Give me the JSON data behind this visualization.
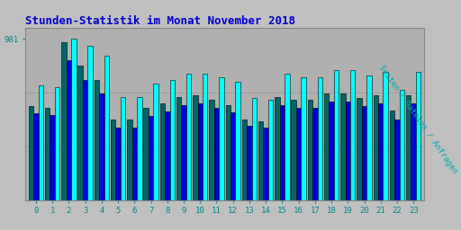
{
  "title": "Stunden-Statistik im Monat November 2018",
  "ylabel": "Seiten / Dateien / Anfragen",
  "xlabel_ticks": [
    0,
    1,
    2,
    3,
    4,
    5,
    6,
    7,
    8,
    9,
    10,
    11,
    12,
    13,
    14,
    15,
    16,
    17,
    18,
    19,
    20,
    21,
    22,
    23
  ],
  "ymax_label": "981",
  "background_color": "#c0c0c0",
  "plot_bg_color": "#b0b0b0",
  "title_color": "#0000cc",
  "ylabel_color": "#00aaaa",
  "tick_color": "#008888",
  "bar_colors": [
    "#006666",
    "#0000dd",
    "#00ffff"
  ],
  "bar_edge_color": "#000000",
  "seiten": [
    570,
    560,
    960,
    820,
    730,
    490,
    490,
    560,
    590,
    630,
    640,
    610,
    580,
    490,
    480,
    630,
    610,
    610,
    650,
    650,
    620,
    640,
    545,
    640
  ],
  "dateien": [
    530,
    520,
    850,
    730,
    650,
    440,
    440,
    510,
    540,
    580,
    590,
    560,
    535,
    450,
    440,
    580,
    560,
    560,
    600,
    600,
    570,
    590,
    490,
    590
  ],
  "anfragen": [
    700,
    690,
    981,
    940,
    880,
    630,
    630,
    710,
    730,
    770,
    770,
    750,
    720,
    620,
    610,
    770,
    750,
    750,
    790,
    790,
    760,
    780,
    670,
    780
  ],
  "yticks": [
    327,
    654,
    981
  ],
  "ylim": [
    0,
    1050
  ],
  "figsize": [
    5.12,
    2.56
  ],
  "dpi": 100
}
